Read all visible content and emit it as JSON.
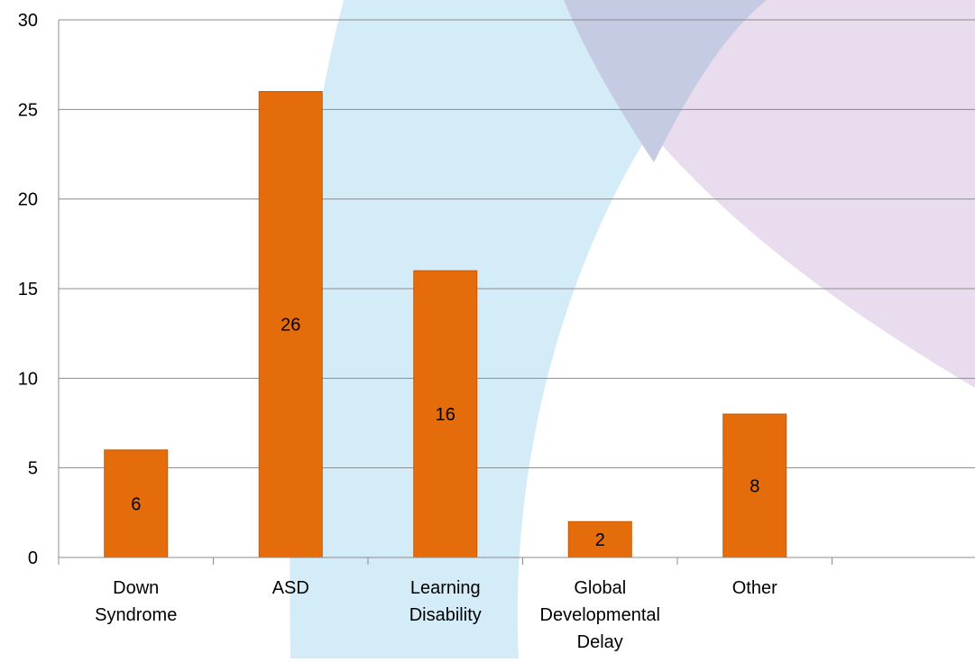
{
  "chart_data": {
    "type": "bar",
    "title": "",
    "xlabel": "",
    "ylabel": "",
    "categories": [
      [
        "Down",
        "Syndrome"
      ],
      [
        "ASD"
      ],
      [
        "Learning",
        "Disability"
      ],
      [
        "Global",
        "Developmental",
        "Delay"
      ],
      [
        "Other"
      ],
      [
        ""
      ]
    ],
    "values": [
      6,
      26,
      16,
      2,
      8,
      null
    ],
    "data_labels": [
      "6",
      "26",
      "16",
      "2",
      "8",
      ""
    ],
    "ylim": [
      0,
      30
    ],
    "yticks": [
      0,
      5,
      10,
      15,
      20,
      25,
      30
    ],
    "grid": true,
    "legend": "none",
    "colors": {
      "bar": "#E46C0A",
      "bar_stroke": "#C45A06",
      "grid": "#8C8C8C",
      "axis": "#8C8C8C",
      "text": "#000000",
      "background_blue": "#D4ECF7",
      "background_purple": "#E8DCEE",
      "background_overlap": "#C6CBE4"
    }
  }
}
